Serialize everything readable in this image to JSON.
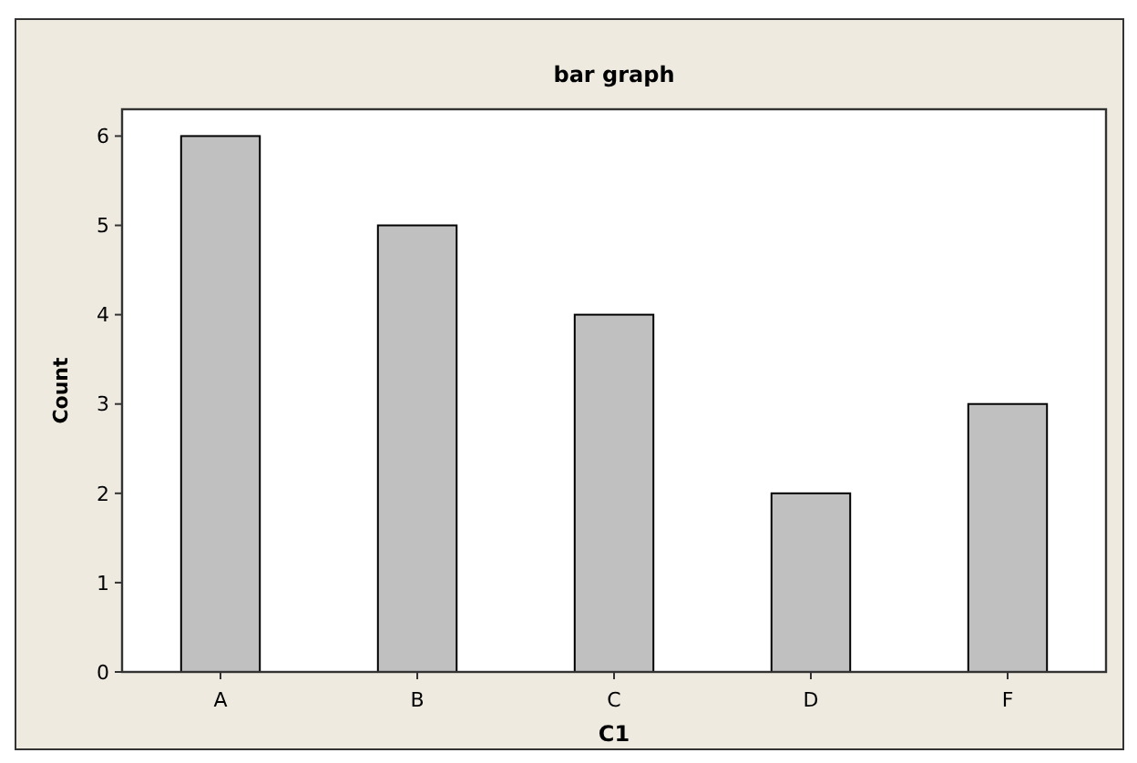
{
  "chart_data": {
    "type": "bar",
    "title": "bar graph",
    "xlabel": "C1",
    "ylabel": "Count",
    "categories": [
      "A",
      "B",
      "C",
      "D",
      "F"
    ],
    "values": [
      6,
      5,
      4,
      2,
      3
    ],
    "color": "#c0c0c0",
    "ylim": [
      0,
      6.3
    ],
    "yticks": [
      0,
      1,
      2,
      3,
      4,
      5,
      6
    ],
    "grid": false
  }
}
